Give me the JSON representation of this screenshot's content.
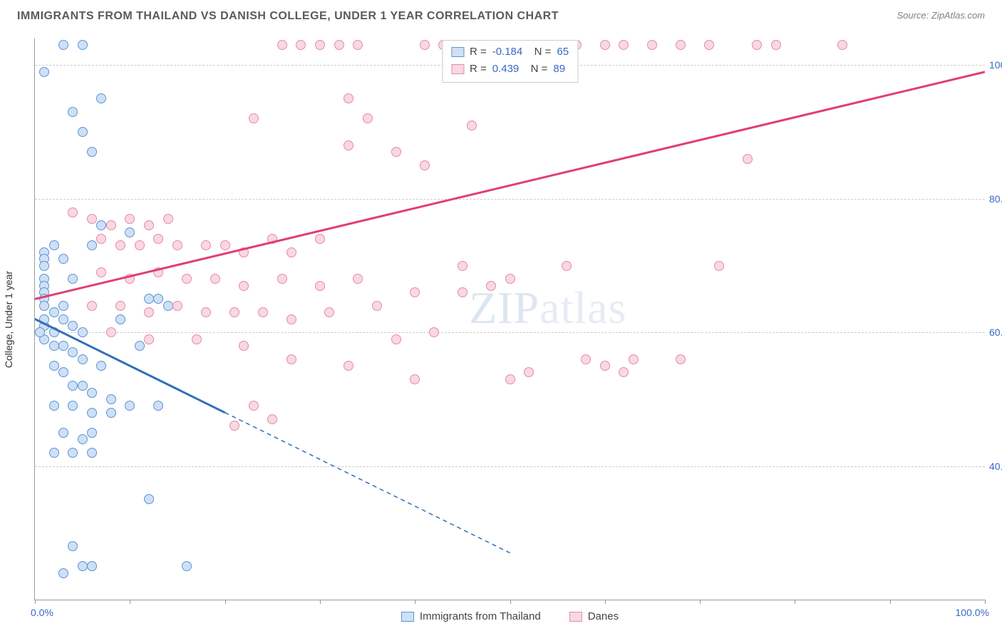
{
  "title": "IMMIGRANTS FROM THAILAND VS DANISH COLLEGE, UNDER 1 YEAR CORRELATION CHART",
  "source_label": "Source: ZipAtlas.com",
  "y_axis_label": "College, Under 1 year",
  "watermark_main": "ZIP",
  "watermark_sub": "atlas",
  "chart": {
    "type": "scatter",
    "xlim": [
      0,
      100
    ],
    "ylim": [
      20,
      104
    ],
    "x_ticks": [
      0,
      10,
      20,
      30,
      40,
      50,
      60,
      70,
      80,
      90,
      100
    ],
    "y_gridlines": [
      40,
      60,
      80,
      100
    ],
    "y_tick_labels": [
      "40.0%",
      "60.0%",
      "80.0%",
      "100.0%"
    ],
    "x_start_label": "0.0%",
    "x_end_label": "100.0%",
    "y_tick_color": "#3969c6",
    "x_label_color": "#3969c6",
    "grid_color": "#cccccc",
    "axis_color": "#999999",
    "background_color": "#ffffff",
    "marker_radius": 7,
    "marker_border_width": 1.2,
    "series": [
      {
        "id": "blue",
        "label": "Immigrants from Thailand",
        "fill": "#cfe0f5",
        "stroke": "#5a94d6",
        "line_color": "#2f6fb8",
        "R": "-0.184",
        "N": "65",
        "trend": {
          "x1": 0,
          "y1": 62,
          "x2": 20,
          "y2": 48,
          "dash_x2": 50,
          "dash_y2": 27
        },
        "points": [
          [
            3,
            103
          ],
          [
            5,
            103
          ],
          [
            1,
            99
          ],
          [
            7,
            95
          ],
          [
            4,
            93
          ],
          [
            5,
            90
          ],
          [
            6,
            87
          ],
          [
            1,
            72
          ],
          [
            1,
            71
          ],
          [
            1,
            70
          ],
          [
            1,
            68
          ],
          [
            1,
            67
          ],
          [
            1,
            66
          ],
          [
            1,
            65
          ],
          [
            1,
            64
          ],
          [
            2,
            73
          ],
          [
            3,
            71
          ],
          [
            3,
            64
          ],
          [
            4,
            68
          ],
          [
            6,
            73
          ],
          [
            7,
            76
          ],
          [
            10,
            75
          ],
          [
            12,
            65
          ],
          [
            13,
            65
          ],
          [
            14,
            64
          ],
          [
            1,
            61
          ],
          [
            1,
            59
          ],
          [
            2,
            60
          ],
          [
            2,
            58
          ],
          [
            3,
            62
          ],
          [
            3,
            58
          ],
          [
            4,
            61
          ],
          [
            4,
            57
          ],
          [
            5,
            60
          ],
          [
            2,
            55
          ],
          [
            3,
            54
          ],
          [
            5,
            56
          ],
          [
            5,
            52
          ],
          [
            7,
            55
          ],
          [
            4,
            52
          ],
          [
            6,
            51
          ],
          [
            8,
            50
          ],
          [
            2,
            49
          ],
          [
            4,
            49
          ],
          [
            6,
            48
          ],
          [
            8,
            48
          ],
          [
            10,
            49
          ],
          [
            3,
            45
          ],
          [
            5,
            44
          ],
          [
            6,
            45
          ],
          [
            2,
            42
          ],
          [
            4,
            42
          ],
          [
            6,
            42
          ],
          [
            12,
            35
          ],
          [
            4,
            28
          ],
          [
            5,
            25
          ],
          [
            6,
            25
          ],
          [
            3,
            24
          ],
          [
            16,
            25
          ],
          [
            1,
            62
          ],
          [
            2,
            63
          ],
          [
            0.5,
            60
          ],
          [
            9,
            62
          ],
          [
            11,
            58
          ],
          [
            13,
            49
          ]
        ]
      },
      {
        "id": "pink",
        "label": "Danes",
        "fill": "#f8d8e1",
        "stroke": "#e68aa6",
        "line_color": "#e23d74",
        "R": "0.439",
        "N": "89",
        "trend": {
          "x1": 0,
          "y1": 65,
          "x2": 100,
          "y2": 99
        },
        "points": [
          [
            26,
            103
          ],
          [
            28,
            103
          ],
          [
            30,
            103
          ],
          [
            32,
            103
          ],
          [
            34,
            103
          ],
          [
            41,
            103
          ],
          [
            43,
            103
          ],
          [
            48,
            103
          ],
          [
            50,
            103
          ],
          [
            53,
            103
          ],
          [
            57,
            103
          ],
          [
            60,
            103
          ],
          [
            62,
            103
          ],
          [
            65,
            103
          ],
          [
            68,
            103
          ],
          [
            71,
            103
          ],
          [
            76,
            103
          ],
          [
            78,
            103
          ],
          [
            85,
            103
          ],
          [
            33,
            95
          ],
          [
            35,
            92
          ],
          [
            46,
            91
          ],
          [
            23,
            92
          ],
          [
            38,
            87
          ],
          [
            41,
            85
          ],
          [
            33,
            88
          ],
          [
            6,
            77
          ],
          [
            8,
            76
          ],
          [
            10,
            77
          ],
          [
            4,
            78
          ],
          [
            12,
            76
          ],
          [
            14,
            77
          ],
          [
            7,
            74
          ],
          [
            9,
            73
          ],
          [
            11,
            73
          ],
          [
            13,
            74
          ],
          [
            15,
            73
          ],
          [
            18,
            73
          ],
          [
            20,
            73
          ],
          [
            22,
            72
          ],
          [
            25,
            74
          ],
          [
            27,
            72
          ],
          [
            30,
            74
          ],
          [
            7,
            69
          ],
          [
            10,
            68
          ],
          [
            13,
            69
          ],
          [
            16,
            68
          ],
          [
            19,
            68
          ],
          [
            22,
            67
          ],
          [
            26,
            68
          ],
          [
            30,
            67
          ],
          [
            34,
            68
          ],
          [
            50,
            68
          ],
          [
            56,
            70
          ],
          [
            72,
            70
          ],
          [
            6,
            64
          ],
          [
            9,
            64
          ],
          [
            12,
            63
          ],
          [
            15,
            64
          ],
          [
            18,
            63
          ],
          [
            21,
            63
          ],
          [
            24,
            63
          ],
          [
            27,
            62
          ],
          [
            31,
            63
          ],
          [
            36,
            64
          ],
          [
            40,
            66
          ],
          [
            45,
            66
          ],
          [
            48,
            67
          ],
          [
            8,
            60
          ],
          [
            12,
            59
          ],
          [
            17,
            59
          ],
          [
            22,
            58
          ],
          [
            27,
            56
          ],
          [
            60,
            55
          ],
          [
            62,
            54
          ],
          [
            58,
            56
          ],
          [
            40,
            53
          ],
          [
            33,
            55
          ],
          [
            23,
            49
          ],
          [
            52,
            54
          ],
          [
            50,
            53
          ],
          [
            21,
            46
          ],
          [
            25,
            47
          ],
          [
            75,
            86
          ],
          [
            63,
            56
          ],
          [
            68,
            56
          ],
          [
            45,
            70
          ],
          [
            42,
            60
          ],
          [
            38,
            59
          ]
        ]
      }
    ]
  },
  "stats_box": {
    "value_color": "#3969c6"
  }
}
